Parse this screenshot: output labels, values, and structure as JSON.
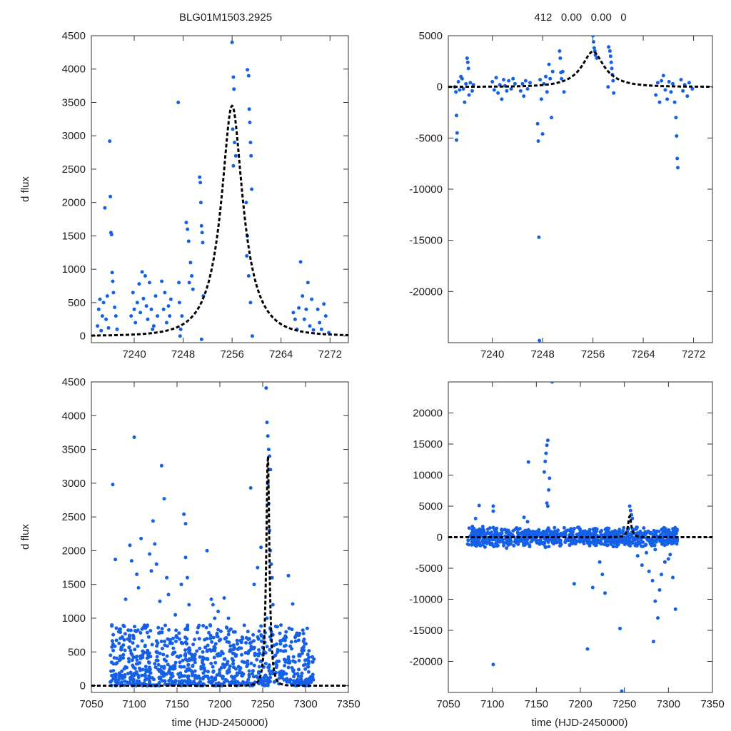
{
  "figure": {
    "title_left": "BLG01M1503.2925",
    "title_right": "412   0.00   0.00   0",
    "ylabel": "d flux",
    "xlabel": "time (HJD-2450000)"
  },
  "colors": {
    "points": "#1560e6",
    "model": "#000000",
    "frame": "#333333"
  },
  "chart_data": [
    {
      "id": "top-left",
      "type": "scatter",
      "title": "BLG01M1503.2925",
      "xlabel": "",
      "ylabel": "d flux",
      "xlim": [
        7233,
        7275
      ],
      "ylim": [
        -100,
        4500
      ],
      "xticks": [
        "7240",
        "7248",
        "7256",
        "7264",
        "7272"
      ],
      "yticks": [
        "0",
        "500",
        "1000",
        "1500",
        "2000",
        "2500",
        "3000",
        "3500",
        "4000",
        "4500"
      ],
      "model": {
        "t0": 7256,
        "tE": 5,
        "u0": 0.34,
        "peak": 3450,
        "style": "dashed"
      },
      "points": [
        [
          7234.0,
          150
        ],
        [
          7234.2,
          400
        ],
        [
          7234.4,
          550
        ],
        [
          7234.6,
          80
        ],
        [
          7234.8,
          300
        ],
        [
          7235.0,
          500
        ],
        [
          7235.2,
          1920
        ],
        [
          7235.4,
          250
        ],
        [
          7235.6,
          600
        ],
        [
          7235.8,
          120
        ],
        [
          7236.0,
          2920
        ],
        [
          7236.1,
          2090
        ],
        [
          7236.2,
          1550
        ],
        [
          7236.3,
          1520
        ],
        [
          7236.4,
          950
        ],
        [
          7236.5,
          820
        ],
        [
          7236.6,
          650
        ],
        [
          7236.8,
          430
        ],
        [
          7237.0,
          300
        ],
        [
          7237.2,
          100
        ],
        [
          7239.5,
          300
        ],
        [
          7239.8,
          650
        ],
        [
          7240.0,
          400
        ],
        [
          7240.2,
          200
        ],
        [
          7240.5,
          500
        ],
        [
          7240.8,
          780
        ],
        [
          7241.0,
          350
        ],
        [
          7241.3,
          960
        ],
        [
          7241.5,
          560
        ],
        [
          7241.8,
          900
        ],
        [
          7242.0,
          450
        ],
        [
          7242.2,
          250
        ],
        [
          7242.5,
          800
        ],
        [
          7242.8,
          400
        ],
        [
          7243.0,
          100
        ],
        [
          7243.2,
          150
        ],
        [
          7243.5,
          600
        ],
        [
          7243.8,
          300
        ],
        [
          7244.5,
          820
        ],
        [
          7244.8,
          400
        ],
        [
          7245.0,
          650
        ],
        [
          7245.3,
          200
        ],
        [
          7245.6,
          450
        ],
        [
          7245.8,
          300
        ],
        [
          7246.0,
          550
        ],
        [
          7247.2,
          3500
        ],
        [
          7247.3,
          800
        ],
        [
          7247.4,
          500
        ],
        [
          7247.5,
          0
        ],
        [
          7247.6,
          100
        ],
        [
          7247.8,
          300
        ],
        [
          7248.5,
          1700
        ],
        [
          7248.7,
          1600
        ],
        [
          7248.9,
          1420
        ],
        [
          7249.0,
          800
        ],
        [
          7249.2,
          1100
        ],
        [
          7249.4,
          900
        ],
        [
          7249.6,
          700
        ],
        [
          7250.7,
          2380
        ],
        [
          7250.8,
          2300
        ],
        [
          7250.9,
          2000
        ],
        [
          7251.0,
          1650
        ],
        [
          7251.1,
          1550
        ],
        [
          7251.2,
          1400
        ],
        [
          7251.3,
          600
        ],
        [
          7251.0,
          -50
        ],
        [
          7256.0,
          4400
        ],
        [
          7256.2,
          3880
        ],
        [
          7256.3,
          3700
        ],
        [
          7256.1,
          3100
        ],
        [
          7256.4,
          2900
        ],
        [
          7256.6,
          2700
        ],
        [
          7256.2,
          2550
        ],
        [
          7258.5,
          3990
        ],
        [
          7258.7,
          3900
        ],
        [
          7258.8,
          3400
        ],
        [
          7258.9,
          3200
        ],
        [
          7259.0,
          2900
        ],
        [
          7259.1,
          2700
        ],
        [
          7259.2,
          2200
        ],
        [
          7258.3,
          2000
        ],
        [
          7258.5,
          1500
        ],
        [
          7258.7,
          900
        ],
        [
          7259.0,
          500
        ],
        [
          7259.3,
          0
        ],
        [
          7258.4,
          1200
        ],
        [
          7266.0,
          350
        ],
        [
          7266.3,
          250
        ],
        [
          7266.6,
          100
        ],
        [
          7266.9,
          420
        ],
        [
          7267.2,
          1110
        ],
        [
          7267.5,
          600
        ],
        [
          7267.8,
          250
        ],
        [
          7268.1,
          400
        ],
        [
          7268.4,
          800
        ],
        [
          7268.7,
          150
        ],
        [
          7269.0,
          550
        ],
        [
          7269.3,
          90
        ],
        [
          7270.0,
          400
        ],
        [
          7270.3,
          200
        ],
        [
          7270.6,
          100
        ],
        [
          7271.0,
          480
        ],
        [
          7271.3,
          300
        ],
        [
          7271.8,
          50
        ]
      ]
    },
    {
      "id": "top-right",
      "type": "scatter",
      "title": "412   0.00   0.00   0",
      "xlabel": "",
      "ylabel": "",
      "xlim": [
        7233,
        7275
      ],
      "ylim": [
        -25000,
        5000
      ],
      "xticks": [
        "7240",
        "7248",
        "7256",
        "7264",
        "7272"
      ],
      "yticks": [
        "-20000",
        "-15000",
        "-10000",
        "-5000",
        "0",
        "5000"
      ],
      "model": {
        "t0": 7256,
        "tE": 5,
        "u0": 0.34,
        "peak": 3450,
        "style": "dashed"
      },
      "points": [
        [
          7234.0,
          0
        ],
        [
          7234.2,
          -500
        ],
        [
          7234.3,
          -2800
        ],
        [
          7234.4,
          -4500
        ],
        [
          7234.3,
          -5200
        ],
        [
          7234.6,
          500
        ],
        [
          7234.8,
          -300
        ],
        [
          7235.0,
          1000
        ],
        [
          7235.2,
          800
        ],
        [
          7235.4,
          -200
        ],
        [
          7235.6,
          -1500
        ],
        [
          7235.8,
          300
        ],
        [
          7236.0,
          2800
        ],
        [
          7236.1,
          2400
        ],
        [
          7236.2,
          1800
        ],
        [
          7236.3,
          -800
        ],
        [
          7236.5,
          400
        ],
        [
          7236.8,
          -400
        ],
        [
          7237.0,
          200
        ],
        [
          7240.0,
          500
        ],
        [
          7240.3,
          -300
        ],
        [
          7240.6,
          900
        ],
        [
          7240.9,
          -600
        ],
        [
          7241.2,
          200
        ],
        [
          7241.5,
          -1200
        ],
        [
          7241.8,
          700
        ],
        [
          7242.0,
          100
        ],
        [
          7242.3,
          -400
        ],
        [
          7242.6,
          600
        ],
        [
          7243.0,
          -200
        ],
        [
          7243.3,
          800
        ],
        [
          7243.6,
          300
        ],
        [
          7244.5,
          -400
        ],
        [
          7244.8,
          300
        ],
        [
          7245.0,
          -900
        ],
        [
          7245.3,
          600
        ],
        [
          7245.6,
          -200
        ],
        [
          7246.0,
          400
        ],
        [
          7247.2,
          -3600
        ],
        [
          7247.3,
          -5300
        ],
        [
          7247.4,
          -14700
        ],
        [
          7247.5,
          -24800
        ],
        [
          7247.6,
          700
        ],
        [
          7247.8,
          -1200
        ],
        [
          7248.0,
          -4600
        ],
        [
          7248.2,
          300
        ],
        [
          7248.5,
          1000
        ],
        [
          7248.7,
          -500
        ],
        [
          7249.0,
          2200
        ],
        [
          7249.2,
          800
        ],
        [
          7249.4,
          -3000
        ],
        [
          7249.6,
          1500
        ],
        [
          7250.7,
          3500
        ],
        [
          7250.8,
          2800
        ],
        [
          7250.9,
          1400
        ],
        [
          7251.0,
          800
        ],
        [
          7251.2,
          1500
        ],
        [
          7251.4,
          -500
        ],
        [
          7256.0,
          5000
        ],
        [
          7256.1,
          4400
        ],
        [
          7256.2,
          3800
        ],
        [
          7256.3,
          3500
        ],
        [
          7256.4,
          3100
        ],
        [
          7256.6,
          2800
        ],
        [
          7258.5,
          3900
        ],
        [
          7258.7,
          3500
        ],
        [
          7258.8,
          3000
        ],
        [
          7258.9,
          2400
        ],
        [
          7259.0,
          1800
        ],
        [
          7259.1,
          1200
        ],
        [
          7259.2,
          600
        ],
        [
          7258.4,
          0
        ],
        [
          7259.3,
          -600
        ],
        [
          7266.0,
          -800
        ],
        [
          7266.3,
          400
        ],
        [
          7266.6,
          -1500
        ],
        [
          7266.9,
          600
        ],
        [
          7267.2,
          1100
        ],
        [
          7267.5,
          -300
        ],
        [
          7267.8,
          -1200
        ],
        [
          7268.1,
          500
        ],
        [
          7268.4,
          -500
        ],
        [
          7268.7,
          300
        ],
        [
          7269.0,
          -1500
        ],
        [
          7269.2,
          -3000
        ],
        [
          7269.3,
          -4800
        ],
        [
          7269.4,
          -7000
        ],
        [
          7269.5,
          -7900
        ],
        [
          7270.0,
          700
        ],
        [
          7270.3,
          -400
        ],
        [
          7270.6,
          200
        ],
        [
          7271.0,
          -900
        ],
        [
          7271.3,
          400
        ],
        [
          7271.8,
          -200
        ]
      ]
    },
    {
      "id": "bottom-left",
      "type": "scatter",
      "title": "",
      "xlabel": "time (HJD-2450000)",
      "ylabel": "d flux",
      "xlim": [
        7050,
        7350
      ],
      "ylim": [
        -100,
        4500
      ],
      "xticks": [
        "7050",
        "7100",
        "7150",
        "7200",
        "7250",
        "7300",
        "7350"
      ],
      "yticks": [
        "0",
        "500",
        "1000",
        "1500",
        "2000",
        "2500",
        "3000",
        "3500",
        "4000",
        "4500"
      ],
      "model": {
        "t0": 7256,
        "tE": 5,
        "u0": 0.34,
        "peak": 3450,
        "style": "dashed"
      },
      "generated_points": {
        "count": 900,
        "xmin": 7072,
        "xmax": 7310,
        "ymin": 0,
        "ymax": 900,
        "seed": 7
      },
      "points": [
        [
          7075,
          2980
        ],
        [
          7078,
          1870
        ],
        [
          7082,
          800
        ],
        [
          7090,
          1280
        ],
        [
          7095,
          2080
        ],
        [
          7097,
          1850
        ],
        [
          7100,
          3680
        ],
        [
          7103,
          1650
        ],
        [
          7105,
          1450
        ],
        [
          7108,
          2180
        ],
        [
          7118,
          1950
        ],
        [
          7120,
          1700
        ],
        [
          7122,
          2440
        ],
        [
          7124,
          2100
        ],
        [
          7126,
          1800
        ],
        [
          7130,
          1250
        ],
        [
          7132,
          3260
        ],
        [
          7135,
          2770
        ],
        [
          7138,
          1600
        ],
        [
          7140,
          1350
        ],
        [
          7148,
          1050
        ],
        [
          7155,
          1500
        ],
        [
          7158,
          2540
        ],
        [
          7160,
          2400
        ],
        [
          7160,
          1900
        ],
        [
          7162,
          1600
        ],
        [
          7164,
          1200
        ],
        [
          7185,
          2000
        ],
        [
          7190,
          1280
        ],
        [
          7192,
          1200
        ],
        [
          7194,
          1000
        ],
        [
          7198,
          1100
        ],
        [
          7205,
          1300
        ],
        [
          7210,
          1000
        ],
        [
          7236,
          2930
        ],
        [
          7240,
          1500
        ],
        [
          7244,
          1750
        ],
        [
          7248,
          2050
        ],
        [
          7254,
          4410
        ],
        [
          7255,
          3900
        ],
        [
          7256,
          3700
        ],
        [
          7257,
          3500
        ],
        [
          7258,
          3400
        ],
        [
          7259,
          3200
        ],
        [
          7256,
          3000
        ],
        [
          7257,
          2700
        ],
        [
          7258,
          2300
        ],
        [
          7259,
          2000
        ],
        [
          7260,
          1800
        ],
        [
          7261,
          1600
        ],
        [
          7262,
          1200
        ],
        [
          7255,
          1000
        ],
        [
          7260,
          800
        ],
        [
          7275,
          700
        ],
        [
          7280,
          1630
        ],
        [
          7285,
          1210
        ],
        [
          7302,
          850
        ]
      ]
    },
    {
      "id": "bottom-right",
      "type": "scatter",
      "title": "",
      "xlabel": "time (HJD-2450000)",
      "ylabel": "",
      "xlim": [
        7050,
        7350
      ],
      "ylim": [
        -25000,
        25000
      ],
      "xticks": [
        "7050",
        "7100",
        "7150",
        "7200",
        "7250",
        "7300",
        "7350"
      ],
      "yticks": [
        "-20000",
        "-15000",
        "-10000",
        "-5000",
        "0",
        "5000",
        "10000",
        "15000",
        "20000"
      ],
      "model": {
        "t0": 7256,
        "tE": 5,
        "u0": 0.34,
        "peak": 3450,
        "style": "solid-dashed"
      },
      "generated_points": {
        "count": 900,
        "xmin": 7072,
        "xmax": 7310,
        "ymin": -1800,
        "ymax": 1800,
        "seed": 11
      },
      "points": [
        [
          7168,
          25000
        ],
        [
          7163,
          15600
        ],
        [
          7162,
          14800
        ],
        [
          7161,
          13500
        ],
        [
          7160,
          12200
        ],
        [
          7141,
          12100
        ],
        [
          7159,
          10500
        ],
        [
          7165,
          9500
        ],
        [
          7164,
          7600
        ],
        [
          7162,
          5500
        ],
        [
          7163,
          5000
        ],
        [
          7101,
          5000
        ],
        [
          7101,
          4200
        ],
        [
          7085,
          5100
        ],
        [
          7081,
          3000
        ],
        [
          7136,
          3200
        ],
        [
          7140,
          2500
        ],
        [
          7193,
          -7500
        ],
        [
          7214,
          -8100
        ],
        [
          7228,
          -9000
        ],
        [
          7225,
          -6000
        ],
        [
          7222,
          -4000
        ],
        [
          7208,
          -18000
        ],
        [
          7101,
          -20500
        ],
        [
          7245,
          -14700
        ],
        [
          7247,
          -24800
        ],
        [
          7256,
          5000
        ],
        [
          7257,
          4300
        ],
        [
          7258,
          3600
        ],
        [
          7259,
          3000
        ],
        [
          7282,
          -7000
        ],
        [
          7285,
          -10300
        ],
        [
          7288,
          -13000
        ],
        [
          7283,
          -16800
        ],
        [
          7290,
          -8500
        ],
        [
          7292,
          -6000
        ],
        [
          7278,
          -5500
        ],
        [
          7270,
          -4500
        ],
        [
          7265,
          -3000
        ],
        [
          7300,
          -3500
        ],
        [
          7305,
          -6500
        ],
        [
          7308,
          -11600
        ],
        [
          7302,
          -2800
        ],
        [
          7296,
          -4000
        ],
        [
          7275,
          -2500
        ],
        [
          7285,
          -2000
        ]
      ]
    }
  ]
}
